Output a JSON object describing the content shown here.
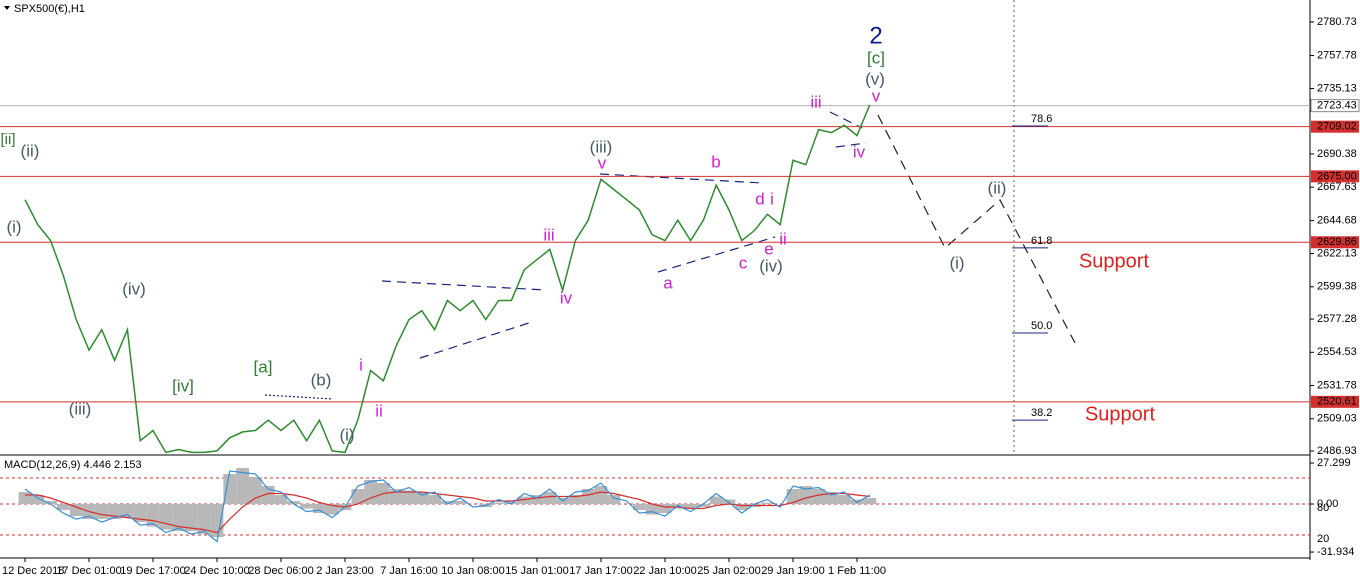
{
  "chart_data": [
    {
      "type": "line",
      "title": "SPX500(€),H1",
      "color": "#2e8b2e",
      "categories": [
        "12 Dec 2018",
        null,
        null,
        null,
        null,
        "17 Dec 01:00",
        null,
        null,
        null,
        null,
        "19 Dec 17:00",
        null,
        null,
        null,
        null,
        "24 Dec 10:00",
        null,
        null,
        null,
        null,
        "28 Dec 06:00",
        null,
        null,
        null,
        null,
        "2 Jan 23:00",
        null,
        null,
        null,
        null,
        "7 Jan 16:00",
        null,
        null,
        null,
        null,
        "10 Jan 08:00",
        null,
        null,
        null,
        null,
        "15 Jan 01:00",
        null,
        null,
        null,
        null,
        "17 Jan 17:00",
        null,
        null,
        null,
        null,
        "22 Jan 10:00",
        null,
        null,
        null,
        null,
        "25 Jan 02:00",
        null,
        null,
        null,
        null,
        "29 Jan 19:00",
        null,
        null,
        null,
        null,
        "1 Feb 11:00",
        null
      ],
      "values": [
        2659,
        2642,
        2631,
        2607,
        2577,
        2556,
        2570,
        2549,
        2570,
        2494,
        2501,
        2486,
        2488,
        2486,
        2486,
        2487,
        2496,
        2500,
        2501,
        2508,
        2501,
        2508,
        2494,
        2508,
        2487,
        2486,
        2508,
        2542,
        2535,
        2559,
        2577,
        2583,
        2570,
        2590,
        2583,
        2590,
        2577,
        2590,
        2590,
        2611,
        2618,
        2625,
        2597,
        2631,
        2645,
        2673,
        2666,
        2659,
        2652,
        2635,
        2631,
        2645,
        2631,
        2645,
        2669,
        2652,
        2631,
        2638,
        2649,
        2642,
        2686,
        2683,
        2707,
        2705,
        2710,
        2703,
        2724
      ],
      "ylim": [
        2484.2,
        2794.4
      ],
      "yticks": [
        2780.73,
        2757.78,
        2735.13,
        2690.38,
        2667.63,
        2644.68,
        2622.13,
        2599.38,
        2577.28,
        2554.53,
        2531.78,
        2509.03,
        2486.93
      ],
      "levels": [
        {
          "value": 2723.43,
          "color": "#b0b0b0"
        },
        {
          "value": 2709.02,
          "color": "#d32f2f"
        },
        {
          "value": 2675,
          "label": "2675.00",
          "color": "#d32f2f"
        },
        {
          "value": 2629.86,
          "color": "#d32f2f"
        },
        {
          "value": 2520.61,
          "color": "#d32f2f"
        }
      ],
      "fib": [
        {
          "value": 2709.5,
          "label": "78.6"
        },
        {
          "value": 2626,
          "label": "61.8"
        },
        {
          "value": 2567.7,
          "label": "50.0"
        },
        {
          "value": 2508.1,
          "label": "38.2"
        }
      ],
      "annotations": [
        {
          "text": "[ii]",
          "color": "#2e7d32"
        },
        {
          "text": "(ii)",
          "color": "#455a64"
        },
        {
          "text": "(i)",
          "color": "#455a64"
        },
        {
          "text": "(iii)",
          "color": "#455a64"
        },
        {
          "text": "(iv)",
          "color": "#455a64"
        },
        {
          "text": "[iv]",
          "color": "#2e7d32"
        },
        {
          "text": "[a]",
          "color": "#2e7d32"
        },
        {
          "text": "(b)",
          "color": "#455a64"
        },
        {
          "text": "(i)",
          "color": "#455a64"
        },
        {
          "text": "i",
          "color": "#d020d0"
        },
        {
          "text": "ii",
          "color": "#d020d0"
        },
        {
          "text": "iii",
          "color": "#d020d0"
        },
        {
          "text": "iv",
          "color": "#d020d0"
        },
        {
          "text": "(iii)",
          "color": "#455a64"
        },
        {
          "text": "v",
          "color": "#d020d0"
        },
        {
          "text": "b",
          "color": "#d020d0"
        },
        {
          "text": "a",
          "color": "#d020d0"
        },
        {
          "text": "d",
          "color": "#d020d0"
        },
        {
          "text": "i",
          "color": "#d020d0"
        },
        {
          "text": "c",
          "color": "#d020d0"
        },
        {
          "text": "e",
          "color": "#d020d0"
        },
        {
          "text": "ii",
          "color": "#d020d0"
        },
        {
          "text": "(iv)",
          "color": "#455a64"
        },
        {
          "text": "iii",
          "color": "#d020d0"
        },
        {
          "text": "iv",
          "color": "#d020d0"
        },
        {
          "text": "v",
          "color": "#d020d0"
        },
        {
          "text": "(v)",
          "color": "#455a64"
        },
        {
          "text": "[c]",
          "color": "#2e7d32"
        },
        {
          "text": "2",
          "color": "#0d1b8c"
        },
        {
          "text": "(i)",
          "color": "#455a64"
        },
        {
          "text": "(ii)",
          "color": "#455a64"
        },
        {
          "text": "Support",
          "color": "#e02020"
        },
        {
          "text": "Support",
          "color": "#e02020"
        }
      ]
    },
    {
      "type": "macd",
      "title": "MACD(12,26,9) 4.446 2.153",
      "values": [
        8,
        6,
        2,
        -4,
        -8,
        -10,
        -10,
        -10,
        -9,
        -12,
        -15,
        -17,
        -18,
        -18,
        -20,
        -22,
        20,
        24,
        18,
        12,
        6,
        2,
        -3,
        -6,
        -7,
        -4,
        10,
        16,
        14,
        10,
        9,
        8,
        6,
        2,
        2,
        0,
        -2,
        1,
        2,
        5,
        6,
        8,
        4,
        6,
        10,
        12,
        6,
        0,
        -4,
        -7,
        -6,
        -3,
        -3,
        -2,
        5,
        3,
        -4,
        -2,
        1,
        0,
        10,
        12,
        10,
        8,
        6,
        3,
        4
      ],
      "signal": [
        6,
        6,
        4,
        1,
        -2,
        -5,
        -7,
        -8,
        -9,
        -10,
        -11,
        -13,
        -15,
        -16,
        -17,
        -19,
        -10,
        -2,
        4,
        7,
        7,
        6,
        4,
        1,
        -1,
        -2,
        0,
        4,
        7,
        8,
        8,
        8,
        7,
        6,
        5,
        4,
        2,
        2,
        2,
        3,
        4,
        5,
        5,
        5,
        6,
        8,
        7,
        5,
        3,
        0,
        -2,
        -2,
        -3,
        -3,
        -1,
        0,
        -1,
        -1,
        -1,
        -1,
        1,
        4,
        6,
        7,
        7,
        6,
        5
      ],
      "line": [
        10,
        4,
        0,
        -6,
        -10,
        -8,
        -12,
        -9,
        -7,
        -14,
        -13,
        -19,
        -16,
        -20,
        -18,
        -25,
        22,
        21,
        20,
        10,
        8,
        0,
        -5,
        -4,
        -9,
        -2,
        12,
        15,
        16,
        8,
        11,
        6,
        8,
        0,
        4,
        -2,
        -1,
        3,
        0,
        7,
        4,
        10,
        2,
        8,
        9,
        14,
        4,
        2,
        -6,
        -5,
        -8,
        -1,
        -5,
        0,
        7,
        1,
        -6,
        0,
        3,
        -2,
        12,
        10,
        11,
        6,
        8,
        1,
        6
      ],
      "colors": {
        "histogram": "#b8b8b8",
        "signal": "#d32f2f",
        "line": "#3a8fd8"
      },
      "ylim": [
        -35.9,
        31.96
      ],
      "yticks": [
        27.299,
        {
          "value": 0,
          "label": "0.00"
        },
        -31.934
      ],
      "markers": [
        {
          "value": 0,
          "label": "80"
        },
        {
          "value": -20.6,
          "label": "20"
        }
      ]
    }
  ]
}
